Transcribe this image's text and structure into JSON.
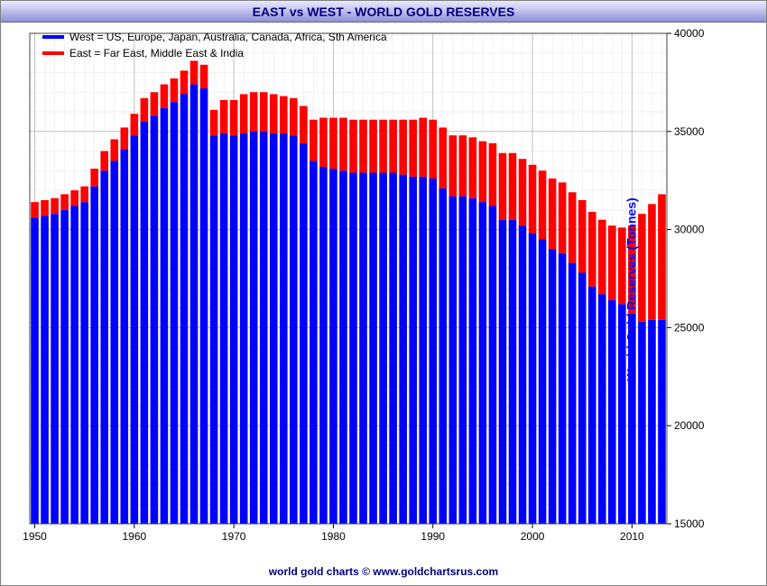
{
  "title": "EAST vs WEST - WORLD GOLD RESERVES",
  "legend": {
    "west": {
      "color": "#0000ff",
      "label": "West = US, Europe, Japan, Australia, Canada, Africa, Sth America"
    },
    "east": {
      "color": "#ff0000",
      "label": "East = Far East, Middle East & India"
    }
  },
  "y_axis": {
    "label": "World Gold Reserves (Tonnes)",
    "min": 15000,
    "max": 40000,
    "tick_step": 5000,
    "tick_color": "#000000",
    "label_color": "#0000ff"
  },
  "x_axis": {
    "ticks": [
      1950,
      1960,
      1970,
      1980,
      1990,
      2000,
      2010
    ],
    "tick_color": "#000000"
  },
  "grid_color": "#c0c0c0",
  "minor_grid_color": "#e0e0e0",
  "plot_background": "#ffffff",
  "bar_gap_ratio": 0.22,
  "credit": "world gold charts © www.goldchartsrus.com",
  "title_fontsize": 14,
  "legend_fontsize": 12,
  "axis_fontsize": 12,
  "years": [
    1950,
    1951,
    1952,
    1953,
    1954,
    1955,
    1956,
    1957,
    1958,
    1959,
    1960,
    1961,
    1962,
    1963,
    1964,
    1965,
    1966,
    1967,
    1968,
    1969,
    1970,
    1971,
    1972,
    1973,
    1974,
    1975,
    1976,
    1977,
    1978,
    1979,
    1980,
    1981,
    1982,
    1983,
    1984,
    1985,
    1986,
    1987,
    1988,
    1989,
    1990,
    1991,
    1992,
    1993,
    1994,
    1995,
    1996,
    1997,
    1998,
    1999,
    2000,
    2001,
    2002,
    2003,
    2004,
    2005,
    2006,
    2007,
    2008,
    2009,
    2010,
    2011,
    2012,
    2013
  ],
  "west": [
    30600,
    30700,
    30800,
    31000,
    31200,
    31400,
    32200,
    33000,
    33500,
    34100,
    34800,
    35500,
    35800,
    36200,
    36500,
    36900,
    37400,
    37200,
    34800,
    34900,
    34800,
    34900,
    35000,
    35000,
    34900,
    34900,
    34800,
    34400,
    33500,
    33200,
    33100,
    33000,
    32900,
    32900,
    32900,
    32900,
    32900,
    32800,
    32700,
    32700,
    32600,
    32100,
    31700,
    31700,
    31600,
    31400,
    31200,
    30500,
    30500,
    30200,
    29800,
    29500,
    29000,
    28800,
    28300,
    27800,
    27100,
    26700,
    26400,
    26200,
    25700,
    25300,
    25400,
    25400
  ],
  "east": [
    800,
    800,
    800,
    800,
    800,
    800,
    900,
    1000,
    1100,
    1100,
    1100,
    1200,
    1200,
    1200,
    1200,
    1200,
    1200,
    1200,
    1300,
    1700,
    1800,
    2000,
    2000,
    2000,
    2000,
    1900,
    1900,
    1900,
    2100,
    2500,
    2600,
    2700,
    2700,
    2700,
    2700,
    2700,
    2700,
    2800,
    2900,
    3000,
    3000,
    3100,
    3100,
    3100,
    3100,
    3100,
    3200,
    3400,
    3400,
    3400,
    3500,
    3500,
    3600,
    3600,
    3600,
    3700,
    3800,
    3800,
    3800,
    3900,
    4500,
    5500,
    5900,
    6400
  ]
}
